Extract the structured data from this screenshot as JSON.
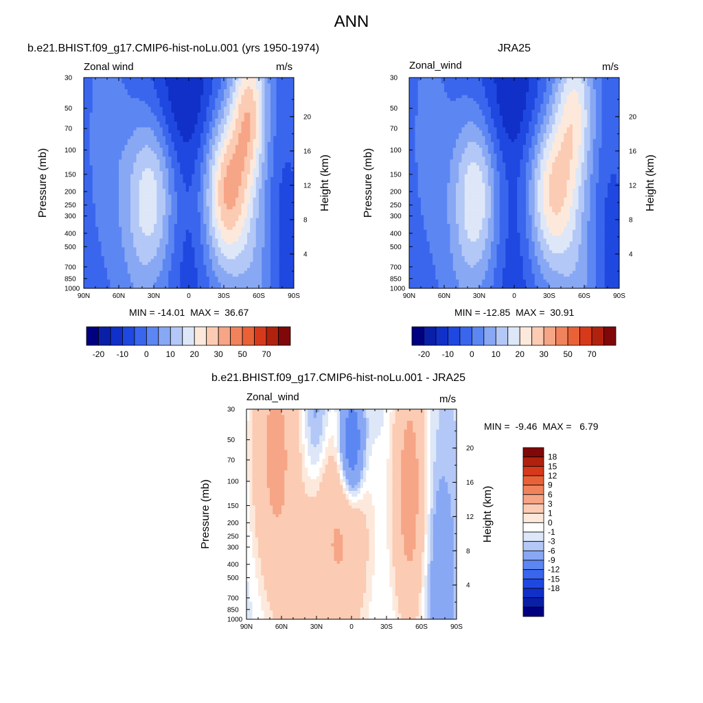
{
  "page": {
    "title": "ANN"
  },
  "colors": {
    "abs_levels": [
      "#000080",
      "#0a1fa8",
      "#1030c8",
      "#1f48e0",
      "#3a66ee",
      "#5c86f2",
      "#88a8f4",
      "#b3c8f6",
      "#dde7f8",
      "#fde9dc",
      "#fbcbb3",
      "#f6a586",
      "#f0835c",
      "#e96237",
      "#d63a1b",
      "#b0220e",
      "#800808"
    ],
    "diff_levels": [
      "#000080",
      "#0a1fa8",
      "#1030c8",
      "#1f48e0",
      "#3a66ee",
      "#5c86f2",
      "#88a8f4",
      "#b3c8f6",
      "#dde7f8",
      "#ffffff",
      "#fde9dc",
      "#fbcbb3",
      "#f6a586",
      "#f0835c",
      "#e96237",
      "#d63a1b",
      "#b0220e",
      "#800808"
    ]
  },
  "chart_data": [
    {
      "type": "heatmap",
      "panel": "model",
      "title": "b.e21.BHIST.f09_g17.CMIP6-hist-noLu.001 (yrs 1950-1974)",
      "left_label": "Zonal wind",
      "right_label": "m/s",
      "xlabel": "",
      "ylabel": "Pressure (mb)",
      "ylabel_right": "Height (km)",
      "x_ticks": [
        "90N",
        "60N",
        "30N",
        "0",
        "30S",
        "60S",
        "90S"
      ],
      "y_ticks": [
        "30",
        "50",
        "70",
        "100",
        "150",
        "200",
        "250",
        "300",
        "400",
        "500",
        "700",
        "850",
        "1000"
      ],
      "y_right_ticks": [
        "20",
        "16",
        "12",
        "8",
        "4"
      ],
      "stats": "MIN = -14.01  MAX =  36.67",
      "min": -14.01,
      "max": 36.67,
      "colorbar_labels": [
        "-20",
        "-10",
        "0",
        "10",
        "20",
        "30",
        "50",
        "70"
      ],
      "field": {
        "background": -3,
        "features": [
          {
            "lat": 33,
            "p": 200,
            "amp": 21,
            "wlat": 15,
            "wp": 1.0
          },
          {
            "lat": -33,
            "p": 200,
            "amp": 33,
            "wlat": 14,
            "wp": 0.95
          },
          {
            "lat": -52,
            "p": 50,
            "amp": 28,
            "wlat": 11,
            "wp": 0.9
          },
          {
            "lat": -58,
            "p": 850,
            "amp": 8,
            "wlat": 13,
            "wp": 1.0
          },
          {
            "lat": 45,
            "p": 850,
            "amp": 4,
            "wlat": 15,
            "wp": 1.0
          },
          {
            "lat": 5,
            "p": 40,
            "amp": -12,
            "wlat": 22,
            "wp": 0.9
          },
          {
            "lat": 0,
            "p": 600,
            "amp": -5,
            "wlat": 13,
            "wp": 1.3
          },
          {
            "lat": 70,
            "p": 80,
            "amp": 6,
            "wlat": 12,
            "wp": 1.4
          },
          {
            "lat": -82,
            "p": 600,
            "amp": -6,
            "wlat": 9,
            "wp": 1.2
          }
        ]
      }
    },
    {
      "type": "heatmap",
      "panel": "obs",
      "title": "JRA25",
      "left_label": "Zonal_wind",
      "right_label": "m/s",
      "xlabel": "",
      "ylabel": "Pressure (mb)",
      "ylabel_right": "Height (km)",
      "x_ticks": [
        "90N",
        "60N",
        "30N",
        "0",
        "30S",
        "60S",
        "90S"
      ],
      "y_ticks": [
        "30",
        "50",
        "70",
        "100",
        "150",
        "200",
        "250",
        "300",
        "400",
        "500",
        "700",
        "850",
        "1000"
      ],
      "y_right_ticks": [
        "20",
        "16",
        "12",
        "8",
        "4"
      ],
      "stats": "MIN = -12.85  MAX =  30.91",
      "min": -12.85,
      "max": 30.91,
      "colorbar_labels": [
        "-20",
        "-10",
        "0",
        "10",
        "20",
        "30",
        "50",
        "70"
      ],
      "field": {
        "background": -3,
        "features": [
          {
            "lat": 33,
            "p": 200,
            "amp": 22,
            "wlat": 14,
            "wp": 1.0
          },
          {
            "lat": -33,
            "p": 200,
            "amp": 28,
            "wlat": 15,
            "wp": 0.95
          },
          {
            "lat": -52,
            "p": 50,
            "amp": 22,
            "wlat": 12,
            "wp": 0.9
          },
          {
            "lat": -55,
            "p": 850,
            "amp": 8,
            "wlat": 13,
            "wp": 1.0
          },
          {
            "lat": 45,
            "p": 850,
            "amp": 4,
            "wlat": 15,
            "wp": 1.0
          },
          {
            "lat": 3,
            "p": 40,
            "amp": -11,
            "wlat": 22,
            "wp": 0.9
          },
          {
            "lat": 0,
            "p": 600,
            "amp": -6,
            "wlat": 12,
            "wp": 1.3
          },
          {
            "lat": 72,
            "p": 80,
            "amp": 5,
            "wlat": 12,
            "wp": 1.4
          },
          {
            "lat": -82,
            "p": 600,
            "amp": -5,
            "wlat": 9,
            "wp": 1.2
          }
        ]
      }
    },
    {
      "type": "heatmap",
      "panel": "difference",
      "title": "b.e21.BHIST.f09_g17.CMIP6-hist-noLu.001 - JRA25",
      "left_label": "Zonal_wind",
      "right_label": "m/s",
      "xlabel": "",
      "ylabel": "Pressure (mb)",
      "ylabel_right": "Height (km)",
      "x_ticks": [
        "90N",
        "60N",
        "30N",
        "0",
        "30S",
        "60S",
        "90S"
      ],
      "y_ticks": [
        "30",
        "50",
        "70",
        "100",
        "150",
        "200",
        "250",
        "300",
        "400",
        "500",
        "700",
        "850",
        "1000"
      ],
      "y_right_ticks": [
        "20",
        "16",
        "12",
        "8",
        "4"
      ],
      "stats": "MIN =  -9.46  MAX =   6.79",
      "min": -9.46,
      "max": 6.79,
      "colorbar_labels": [
        "18",
        "15",
        "12",
        "9",
        "6",
        "3",
        "1",
        "0",
        "-1",
        "-3",
        "-6",
        "-9",
        "-12",
        "-15",
        "-18"
      ],
      "field": {
        "background": -0.4,
        "features": [
          {
            "lat": 65,
            "p": 60,
            "amp": 4,
            "wlat": 14,
            "wp": 1.6
          },
          {
            "lat": 10,
            "p": 250,
            "amp": 3.5,
            "wlat": 18,
            "wp": 1.4
          },
          {
            "lat": -50,
            "p": 120,
            "amp": 4.5,
            "wlat": 10,
            "wp": 1.6
          },
          {
            "lat": 0,
            "p": 55,
            "amp": -6,
            "wlat": 7,
            "wp": 0.6
          },
          {
            "lat": 45,
            "p": 800,
            "amp": 1.5,
            "wlat": 15,
            "wp": 1.0
          },
          {
            "lat": -75,
            "p": 500,
            "amp": -1.5,
            "wlat": 10,
            "wp": 1.4
          },
          {
            "lat": 30,
            "p": 40,
            "amp": -1.5,
            "wlat": 8,
            "wp": 0.8
          }
        ]
      }
    }
  ]
}
